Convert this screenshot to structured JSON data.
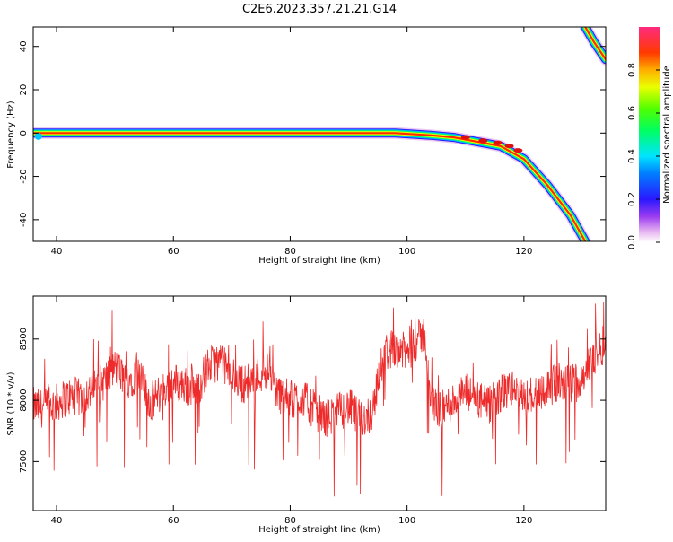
{
  "title": "C2E6.2023.357.21.21.G14",
  "chart_data": [
    {
      "type": "heatmap",
      "xlabel": "Height of straight line (km)",
      "ylabel": "Frequency (Hz)",
      "xlim": [
        36,
        134
      ],
      "ylim": [
        -50,
        49
      ],
      "x_ticks": [
        40,
        60,
        80,
        100,
        120
      ],
      "y_ticks": [
        40,
        20,
        0,
        -20,
        -40
      ],
      "ridge": {
        "x": [
          36,
          40,
          60,
          80,
          98,
          104,
          108,
          112,
          116,
          120,
          124,
          128,
          130.5
        ],
        "y": [
          0,
          0,
          0,
          0,
          0,
          -1,
          -2,
          -4,
          -6,
          -12,
          -24,
          -38,
          -50
        ]
      },
      "ridge_segment_2": {
        "x": [
          130.5,
          132,
          134
        ],
        "y": [
          49,
          42,
          34
        ]
      },
      "colorbar": {
        "label": "Normalized spectral amplitude",
        "range": [
          0,
          1
        ],
        "ticks": [
          0.0,
          0.2,
          0.4,
          0.6,
          0.8
        ],
        "tick_labels": [
          "0.0",
          "0.2",
          "0.4",
          "0.6",
          "0.8"
        ]
      }
    },
    {
      "type": "line",
      "xlabel": "Height of straight line (km)",
      "ylabel": "SNR (10 * v/v)",
      "xlim": [
        36,
        134
      ],
      "ylim": [
        7100,
        8850
      ],
      "x_ticks": [
        40,
        60,
        80,
        100,
        120
      ],
      "y_ticks": [
        7500,
        8000,
        8500
      ],
      "series": [
        {
          "color": "#ee2a2a",
          "x": [
            36,
            38,
            40,
            42,
            44,
            46,
            48,
            50,
            52,
            54,
            56,
            58,
            60,
            62,
            64,
            66,
            68,
            70,
            72,
            74,
            76,
            78,
            80,
            82,
            84,
            86,
            88,
            90,
            92,
            94,
            96,
            98,
            100,
            102,
            103,
            104,
            106,
            108,
            110,
            112,
            114,
            116,
            118,
            120,
            122,
            124,
            126,
            128,
            130,
            132,
            134
          ],
          "y": [
            7950,
            7930,
            7980,
            8030,
            8020,
            8080,
            8150,
            8270,
            8160,
            8220,
            7980,
            8070,
            8150,
            8120,
            8080,
            8280,
            8320,
            8200,
            8130,
            8180,
            8260,
            8050,
            8010,
            8020,
            7930,
            7850,
            7900,
            7950,
            7840,
            7900,
            8380,
            8440,
            8380,
            8500,
            8550,
            7980,
            7920,
            8000,
            8060,
            8010,
            7950,
            8050,
            8100,
            8000,
            8070,
            8100,
            8150,
            8130,
            8200,
            8350,
            8480
          ]
        }
      ]
    }
  ]
}
